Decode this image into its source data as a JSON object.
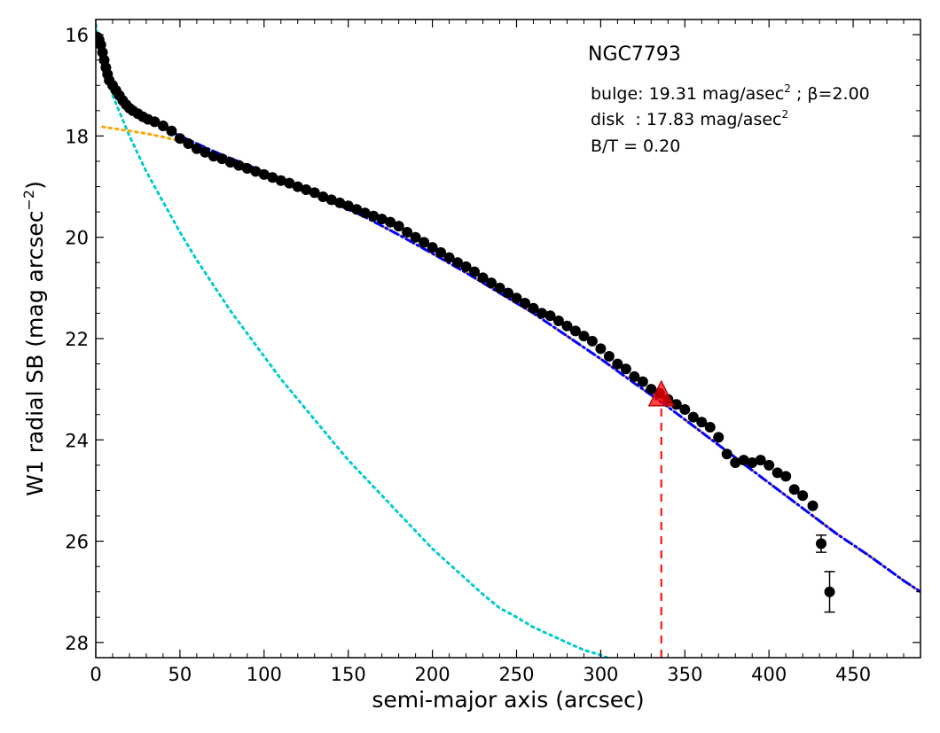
{
  "chart_data": {
    "type": "scatter",
    "title": "NGC7793",
    "xlabel": "semi-major axis (arcsec)",
    "ylabel": "W1 radial SB (mag arcsec",
    "ylabel_sup": "−2",
    "ylabel_close": ")",
    "xlim": [
      0,
      490
    ],
    "ylim": [
      28.3,
      15.7
    ],
    "y_inverted": true,
    "grid": false,
    "x_ticks": [
      0,
      50,
      100,
      150,
      200,
      250,
      300,
      350,
      400,
      450
    ],
    "x_tick_labels": [
      "0",
      "50",
      "100",
      "150",
      "200",
      "250",
      "300",
      "350",
      "400",
      "450"
    ],
    "y_ticks": [
      16,
      18,
      20,
      22,
      24,
      26,
      28
    ],
    "y_tick_labels": [
      "16",
      "18",
      "20",
      "22",
      "24",
      "26",
      "28"
    ],
    "annotations": {
      "bulge_prefix": "bulge: 19.31 mag/asec",
      "bulge_sup": "2",
      "bulge_suffix": " ; β=2.00",
      "disk_prefix": "disk  : 17.83 mag/asec",
      "disk_sup": "2",
      "bt": "B/T = 0.20"
    },
    "series": [
      {
        "role": "data",
        "color": "#000000",
        "marker": "circle",
        "points": [
          [
            1,
            16.05
          ],
          [
            2,
            16.1
          ],
          [
            3,
            16.2
          ],
          [
            4,
            16.35
          ],
          [
            5,
            16.5
          ],
          [
            6,
            16.65
          ],
          [
            7,
            16.78
          ],
          [
            8,
            16.9
          ],
          [
            10,
            17.0
          ],
          [
            12,
            17.1
          ],
          [
            14,
            17.2
          ],
          [
            16,
            17.3
          ],
          [
            18,
            17.38
          ],
          [
            20,
            17.45
          ],
          [
            22,
            17.5
          ],
          [
            25,
            17.56
          ],
          [
            28,
            17.62
          ],
          [
            31,
            17.67
          ],
          [
            35,
            17.72
          ],
          [
            40,
            17.8
          ],
          [
            45,
            17.9
          ],
          [
            50,
            18.05
          ],
          [
            55,
            18.15
          ],
          [
            60,
            18.25
          ],
          [
            65,
            18.32
          ],
          [
            70,
            18.4
          ],
          [
            75,
            18.45
          ],
          [
            80,
            18.52
          ],
          [
            85,
            18.58
          ],
          [
            90,
            18.64
          ],
          [
            95,
            18.7
          ],
          [
            100,
            18.76
          ],
          [
            105,
            18.82
          ],
          [
            110,
            18.88
          ],
          [
            115,
            18.93
          ],
          [
            120,
            19.0
          ],
          [
            125,
            19.06
          ],
          [
            130,
            19.12
          ],
          [
            135,
            19.2
          ],
          [
            140,
            19.26
          ],
          [
            145,
            19.32
          ],
          [
            150,
            19.38
          ],
          [
            155,
            19.45
          ],
          [
            160,
            19.52
          ],
          [
            165,
            19.58
          ],
          [
            170,
            19.64
          ],
          [
            175,
            19.7
          ],
          [
            180,
            19.78
          ],
          [
            185,
            19.9
          ],
          [
            190,
            20.0
          ],
          [
            195,
            20.1
          ],
          [
            200,
            20.2
          ],
          [
            205,
            20.3
          ],
          [
            210,
            20.4
          ],
          [
            215,
            20.5
          ],
          [
            220,
            20.58
          ],
          [
            225,
            20.68
          ],
          [
            230,
            20.8
          ],
          [
            235,
            20.9
          ],
          [
            240,
            21.0
          ],
          [
            245,
            21.1
          ],
          [
            250,
            21.2
          ],
          [
            255,
            21.3
          ],
          [
            260,
            21.4
          ],
          [
            265,
            21.5
          ],
          [
            270,
            21.55
          ],
          [
            275,
            21.65
          ],
          [
            280,
            21.75
          ],
          [
            285,
            21.85
          ],
          [
            290,
            21.95
          ],
          [
            295,
            22.05
          ],
          [
            300,
            22.2
          ],
          [
            305,
            22.35
          ],
          [
            310,
            22.5
          ],
          [
            315,
            22.6
          ],
          [
            320,
            22.75
          ],
          [
            325,
            22.85
          ],
          [
            330,
            23.0
          ],
          [
            335,
            23.08
          ],
          [
            340,
            23.2
          ],
          [
            345,
            23.3
          ],
          [
            350,
            23.4
          ],
          [
            355,
            23.55
          ],
          [
            360,
            23.65
          ],
          [
            365,
            23.75
          ],
          [
            370,
            23.95
          ],
          [
            375,
            24.28
          ],
          [
            380,
            24.45
          ],
          [
            385,
            24.4
          ],
          [
            390,
            24.45
          ],
          [
            395,
            24.4
          ],
          [
            400,
            24.5
          ],
          [
            405,
            24.65
          ],
          [
            410,
            24.72
          ],
          [
            415,
            24.98
          ],
          [
            420,
            25.1
          ],
          [
            426,
            25.3
          ],
          [
            431,
            26.05
          ],
          [
            436,
            27.0
          ]
        ],
        "error_bars": [
          {
            "x": 431,
            "y": 26.05,
            "err": 0.17
          },
          {
            "x": 436,
            "y": 27.0,
            "err": 0.4
          }
        ]
      },
      {
        "role": "bulge model",
        "color": "#00cccc",
        "style": "dotted",
        "points": [
          [
            0,
            15.8
          ],
          [
            2,
            16.15
          ],
          [
            5,
            16.6
          ],
          [
            10,
            17.2
          ],
          [
            20,
            18.0
          ],
          [
            30,
            18.7
          ],
          [
            40,
            19.3
          ],
          [
            50,
            19.9
          ],
          [
            60,
            20.45
          ],
          [
            70,
            20.95
          ],
          [
            80,
            21.45
          ],
          [
            90,
            21.9
          ],
          [
            100,
            22.35
          ],
          [
            110,
            22.8
          ],
          [
            120,
            23.2
          ],
          [
            130,
            23.6
          ],
          [
            140,
            24.0
          ],
          [
            150,
            24.4
          ],
          [
            160,
            24.75
          ],
          [
            170,
            25.1
          ],
          [
            180,
            25.45
          ],
          [
            190,
            25.8
          ],
          [
            200,
            26.15
          ],
          [
            210,
            26.45
          ],
          [
            220,
            26.75
          ],
          [
            230,
            27.05
          ],
          [
            240,
            27.32
          ],
          [
            250,
            27.5
          ],
          [
            260,
            27.7
          ],
          [
            270,
            27.85
          ],
          [
            280,
            28.0
          ],
          [
            290,
            28.15
          ],
          [
            300,
            28.25
          ],
          [
            306,
            28.33
          ]
        ]
      },
      {
        "role": "disk model",
        "color": "#ffa500",
        "style": "dotted",
        "points": [
          [
            4,
            17.82
          ],
          [
            10,
            17.85
          ],
          [
            20,
            17.9
          ],
          [
            30,
            17.95
          ],
          [
            40,
            18.02
          ],
          [
            50,
            18.1
          ],
          [
            60,
            18.2
          ],
          [
            70,
            18.32
          ],
          [
            80,
            18.45
          ],
          [
            90,
            18.58
          ],
          [
            100,
            18.72
          ],
          [
            120,
            19.0
          ],
          [
            140,
            19.3
          ],
          [
            160,
            19.6
          ],
          [
            180,
            19.95
          ],
          [
            200,
            20.32
          ],
          [
            220,
            20.7
          ],
          [
            240,
            21.1
          ],
          [
            260,
            21.5
          ],
          [
            280,
            21.95
          ],
          [
            300,
            22.4
          ],
          [
            320,
            22.88
          ],
          [
            340,
            23.35
          ],
          [
            360,
            23.85
          ],
          [
            380,
            24.35
          ],
          [
            400,
            24.85
          ],
          [
            420,
            25.35
          ],
          [
            440,
            25.85
          ],
          [
            460,
            26.3
          ],
          [
            480,
            26.78
          ],
          [
            490,
            27.0
          ]
        ]
      },
      {
        "role": "total model",
        "color": "#0000ff",
        "style": "dashdot",
        "points": [
          [
            0,
            15.95
          ],
          [
            2,
            16.15
          ],
          [
            5,
            16.55
          ],
          [
            8,
            16.85
          ],
          [
            12,
            17.1
          ],
          [
            16,
            17.28
          ],
          [
            20,
            17.42
          ],
          [
            25,
            17.55
          ],
          [
            30,
            17.65
          ],
          [
            35,
            17.73
          ],
          [
            40,
            17.83
          ],
          [
            50,
            18.0
          ],
          [
            60,
            18.15
          ],
          [
            70,
            18.3
          ],
          [
            80,
            18.44
          ],
          [
            90,
            18.57
          ],
          [
            100,
            18.71
          ],
          [
            120,
            19.0
          ],
          [
            140,
            19.3
          ],
          [
            160,
            19.6
          ],
          [
            180,
            19.95
          ],
          [
            200,
            20.32
          ],
          [
            220,
            20.7
          ],
          [
            240,
            21.1
          ],
          [
            260,
            21.5
          ],
          [
            280,
            21.95
          ],
          [
            300,
            22.4
          ],
          [
            320,
            22.88
          ],
          [
            340,
            23.35
          ],
          [
            360,
            23.85
          ],
          [
            380,
            24.35
          ],
          [
            400,
            24.85
          ],
          [
            420,
            25.35
          ],
          [
            440,
            25.85
          ],
          [
            460,
            26.3
          ],
          [
            480,
            26.78
          ],
          [
            490,
            27.0
          ]
        ]
      }
    ],
    "marker_triangle": {
      "x": 336,
      "y": 23.1,
      "color": "#ff0000"
    },
    "vline": {
      "x": 336,
      "from_y": 28.3,
      "to_y": 23.1,
      "color": "#ff0000",
      "style": "dashed"
    }
  }
}
